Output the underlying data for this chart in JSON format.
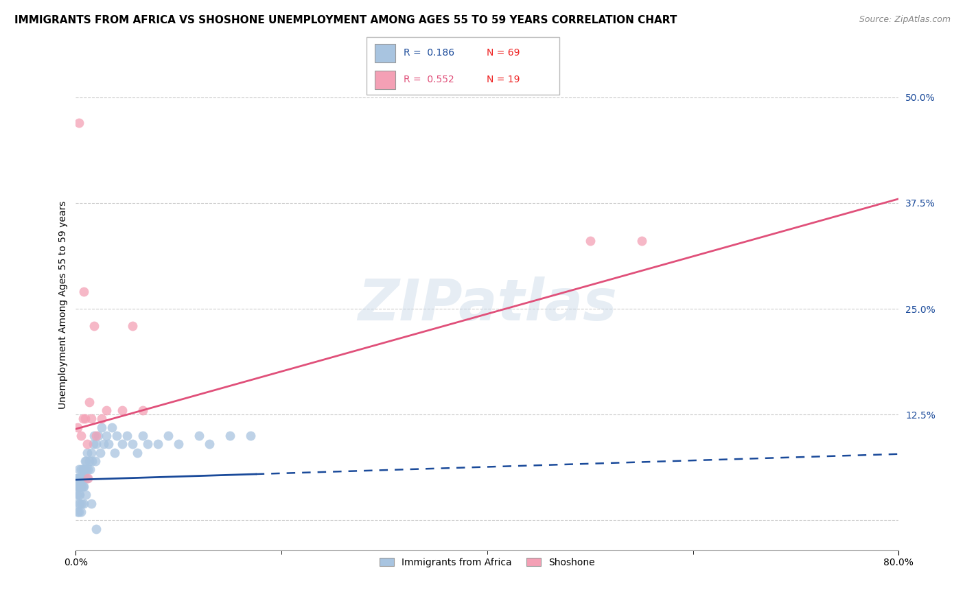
{
  "title": "IMMIGRANTS FROM AFRICA VS SHOSHONE UNEMPLOYMENT AMONG AGES 55 TO 59 YEARS CORRELATION CHART",
  "source": "Source: ZipAtlas.com",
  "ylabel": "Unemployment Among Ages 55 to 59 years",
  "yticks": [
    0.0,
    0.125,
    0.25,
    0.375,
    0.5
  ],
  "ytick_labels": [
    "",
    "12.5%",
    "25.0%",
    "37.5%",
    "50.0%"
  ],
  "xlim": [
    0.0,
    0.8
  ],
  "ylim": [
    -0.035,
    0.545
  ],
  "blue_color": "#a8c4e0",
  "pink_color": "#f4a0b5",
  "blue_line_color": "#1a4a9a",
  "pink_line_color": "#e0507a",
  "red_text_color": "#ee2222",
  "watermark": "ZIPatlas",
  "title_fontsize": 11,
  "axis_label_fontsize": 10,
  "tick_fontsize": 10,
  "blue_scatter_x": [
    0.0,
    0.001,
    0.001,
    0.002,
    0.002,
    0.002,
    0.003,
    0.003,
    0.003,
    0.003,
    0.004,
    0.004,
    0.004,
    0.005,
    0.005,
    0.005,
    0.006,
    0.006,
    0.007,
    0.007,
    0.007,
    0.008,
    0.008,
    0.009,
    0.009,
    0.01,
    0.01,
    0.011,
    0.011,
    0.012,
    0.013,
    0.014,
    0.015,
    0.016,
    0.017,
    0.018,
    0.019,
    0.02,
    0.022,
    0.024,
    0.025,
    0.027,
    0.03,
    0.032,
    0.035,
    0.038,
    0.04,
    0.045,
    0.05,
    0.055,
    0.06,
    0.065,
    0.07,
    0.08,
    0.09,
    0.1,
    0.12,
    0.13,
    0.15,
    0.17,
    0.002,
    0.003,
    0.004,
    0.005,
    0.006,
    0.008,
    0.01,
    0.015,
    0.02
  ],
  "blue_scatter_y": [
    0.04,
    0.03,
    0.05,
    0.02,
    0.04,
    0.05,
    0.03,
    0.04,
    0.05,
    0.06,
    0.03,
    0.04,
    0.05,
    0.04,
    0.05,
    0.06,
    0.04,
    0.05,
    0.04,
    0.05,
    0.06,
    0.04,
    0.06,
    0.05,
    0.07,
    0.06,
    0.07,
    0.05,
    0.08,
    0.06,
    0.07,
    0.06,
    0.08,
    0.07,
    0.09,
    0.1,
    0.07,
    0.09,
    0.1,
    0.08,
    0.11,
    0.09,
    0.1,
    0.09,
    0.11,
    0.08,
    0.1,
    0.09,
    0.1,
    0.09,
    0.08,
    0.1,
    0.09,
    0.09,
    0.1,
    0.09,
    0.1,
    0.09,
    0.1,
    0.1,
    0.01,
    0.01,
    0.02,
    0.01,
    0.02,
    0.02,
    0.03,
    0.02,
    -0.01
  ],
  "pink_scatter_x": [
    0.002,
    0.003,
    0.005,
    0.007,
    0.008,
    0.009,
    0.011,
    0.013,
    0.015,
    0.018,
    0.02,
    0.025,
    0.03,
    0.045,
    0.055,
    0.065,
    0.5,
    0.55,
    0.012
  ],
  "pink_scatter_y": [
    0.11,
    0.47,
    0.1,
    0.12,
    0.27,
    0.12,
    0.09,
    0.14,
    0.12,
    0.23,
    0.1,
    0.12,
    0.13,
    0.13,
    0.23,
    0.13,
    0.33,
    0.33,
    0.05
  ],
  "blue_line_x0": 0.0,
  "blue_line_x_solid_end": 0.175,
  "blue_line_x_dashed_end": 0.8,
  "blue_line_y0": 0.048,
  "blue_line_slope": 0.038,
  "pink_line_x0": 0.0,
  "pink_line_x_end": 0.8,
  "pink_line_y0": 0.108,
  "pink_line_slope": 0.34
}
